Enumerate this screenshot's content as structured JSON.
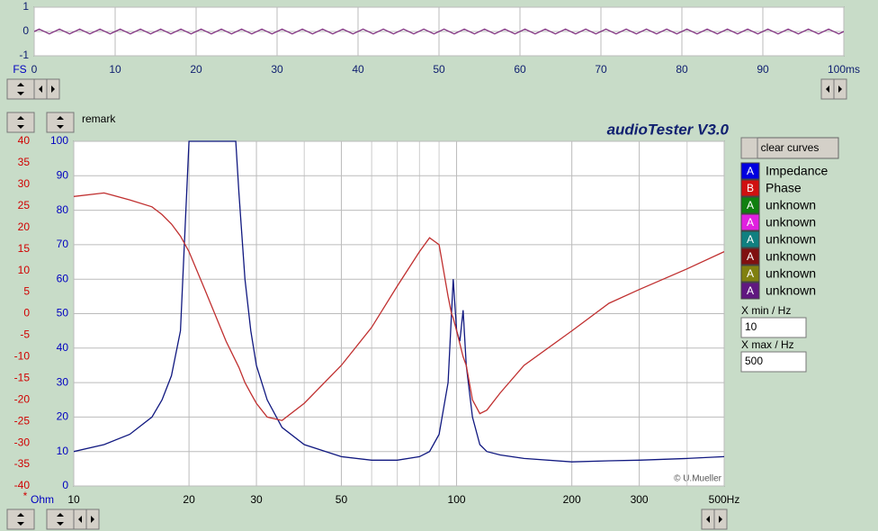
{
  "chart_data": [
    {
      "type": "line",
      "xlim": [
        0,
        100
      ],
      "ylim": [
        -1,
        1
      ],
      "yticks": [
        -1,
        0,
        1
      ],
      "xticks": [
        0,
        10,
        20,
        30,
        40,
        50,
        60,
        70,
        80,
        90,
        {
          "value": 100,
          "label": "100ms"
        }
      ],
      "grid": true,
      "y_label": "FS",
      "x": [
        0,
        0.625,
        1.875,
        3.125,
        4.375,
        5.625,
        6.875,
        8.125,
        9.375,
        10.625,
        11.875,
        13.125,
        14.375,
        15.625,
        16.875,
        18.125,
        19.375,
        20.625,
        21.875,
        23.125,
        24.375,
        25.625,
        26.875,
        28.125,
        29.375,
        30.625,
        31.875,
        33.125,
        34.375,
        35.625,
        36.875,
        38.125,
        39.375,
        40.625,
        41.875,
        43.125,
        44.375,
        45.625,
        46.875,
        48.125,
        49.375,
        50.625,
        51.875,
        53.125,
        54.375,
        55.625,
        56.875,
        58.125,
        59.375,
        60.625,
        61.875,
        63.125,
        64.375,
        65.625,
        66.875,
        68.125,
        69.375,
        70.625,
        71.875,
        73.125,
        74.375,
        75.625,
        76.875,
        78.125,
        79.375,
        80.625,
        81.875,
        83.125,
        84.375,
        85.625,
        86.875,
        88.125,
        89.375,
        90.625,
        91.875,
        93.125,
        94.375,
        95.625,
        96.875,
        98.125,
        99.375,
        100
      ],
      "series": [
        {
          "color": "#803080",
          "values": [
            0,
            0.1,
            -0.1,
            0.1,
            -0.1,
            0.1,
            -0.1,
            0.1,
            -0.1,
            0.1,
            -0.1,
            0.1,
            -0.1,
            0.1,
            -0.1,
            0.1,
            -0.1,
            0.1,
            -0.1,
            0.1,
            -0.1,
            0.1,
            -0.1,
            0.1,
            -0.1,
            0.1,
            -0.1,
            0.1,
            -0.1,
            0.1,
            -0.1,
            0.1,
            -0.1,
            0.1,
            -0.1,
            0.1,
            -0.1,
            0.1,
            -0.1,
            0.1,
            -0.1,
            0.1,
            -0.1,
            0.1,
            -0.1,
            0.1,
            -0.1,
            0.1,
            -0.1,
            0.1,
            -0.1,
            0.1,
            -0.1,
            0.1,
            -0.1,
            0.1,
            -0.1,
            0.1,
            -0.1,
            0.1,
            -0.1,
            0.1,
            -0.1,
            0.1,
            -0.1,
            0.1,
            -0.1,
            0.1,
            -0.1,
            0.1,
            -0.1,
            0.1,
            -0.1,
            0.1,
            -0.1,
            0.1,
            -0.1,
            0.1,
            -0.1,
            0.1,
            -0.1,
            0
          ]
        }
      ]
    },
    {
      "type": "line",
      "title": "audioTester  V3.0",
      "subtitle": "remark",
      "annotation": "© U.Mueller",
      "xscale": "log",
      "xlim": [
        10,
        500
      ],
      "xticks": [
        10,
        20,
        30,
        50,
        100,
        200,
        300,
        {
          "value": 500,
          "label": "500Hz"
        }
      ],
      "xminor_ticks": [
        40,
        60,
        70,
        80,
        90,
        400
      ],
      "ylim": [
        0,
        100
      ],
      "yticks": [
        0,
        10,
        20,
        30,
        40,
        50,
        60,
        70,
        80,
        90,
        100
      ],
      "y_label": "Ohm",
      "y_color": "#0000c0",
      "y2lim": [
        -40,
        40
      ],
      "y2ticks": [
        -40,
        -35,
        -30,
        -25,
        -20,
        -15,
        -10,
        -5,
        0,
        5,
        10,
        15,
        20,
        25,
        30,
        35,
        40
      ],
      "y2_label": "*",
      "y2_color": "#d00000",
      "grid": true,
      "x": [
        10,
        12,
        14,
        16,
        17,
        18,
        19,
        20,
        22,
        25,
        26.5,
        27,
        28,
        29,
        30,
        32,
        35,
        40,
        50,
        60,
        70,
        80,
        85,
        90,
        95,
        97,
        98,
        100,
        102,
        104,
        106,
        110,
        115,
        120,
        130,
        150,
        200,
        250,
        300,
        400,
        500
      ],
      "series": [
        {
          "name": "Impedance",
          "letter": "A",
          "color": "#0000e0",
          "line_color": "#101880",
          "values": [
            10,
            12,
            15,
            20,
            25,
            32,
            45,
            100,
            100,
            100,
            100,
            85,
            60,
            45,
            35,
            25,
            17,
            12,
            8.5,
            7.5,
            7.5,
            8.5,
            10,
            15,
            30,
            50,
            60,
            45,
            42,
            51,
            35,
            20,
            12,
            10,
            9,
            8,
            7,
            7.3,
            7.5,
            8,
            8.5
          ]
        },
        {
          "name": "Phase",
          "letter": "B",
          "color": "#d01010",
          "line_color": "#c03030",
          "axis": "y2",
          "values": [
            27.2,
            28,
            26.4,
            24.8,
            23,
            20.8,
            18,
            14.4,
            5.6,
            -6.4,
            -11,
            -12.5,
            -16,
            -18.5,
            -20.8,
            -24,
            -24.8,
            -20.8,
            -12,
            -3.2,
            6.4,
            14.4,
            17.6,
            16,
            4,
            0,
            -1,
            -4,
            -7,
            -10,
            -12,
            -20,
            -23.2,
            -22.4,
            -18.4,
            -12,
            -4,
            2.4,
            5.6,
            10.4,
            14.4
          ]
        }
      ]
    }
  ],
  "ui": {
    "button": "clear curves",
    "extra_legend": [
      {
        "letter": "A",
        "label": "unknown",
        "color": "#108010"
      },
      {
        "letter": "A",
        "label": "unknown",
        "color": "#e020e0"
      },
      {
        "letter": "A",
        "label": "unknown",
        "color": "#108080"
      },
      {
        "letter": "A",
        "label": "unknown",
        "color": "#801010"
      },
      {
        "letter": "A",
        "label": "unknown",
        "color": "#808010"
      },
      {
        "letter": "A",
        "label": "unknown",
        "color": "#601880"
      }
    ],
    "xmin_label": "X min / Hz",
    "xmin_value": "10",
    "xmax_label": "X max / Hz",
    "xmax_value": "500"
  }
}
